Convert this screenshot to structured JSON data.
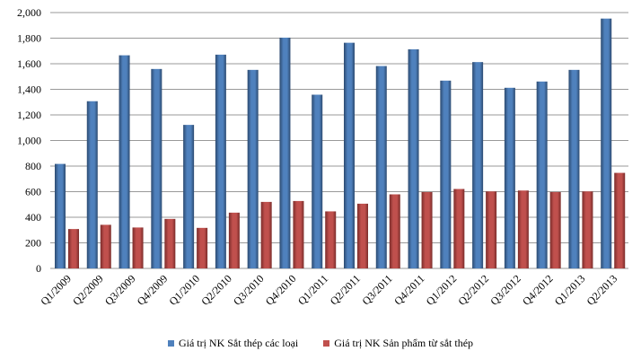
{
  "chart_data": {
    "type": "bar",
    "title": "",
    "xlabel": "",
    "ylabel": "",
    "ylim": [
      0,
      2000
    ],
    "yticks": [
      0,
      200,
      400,
      600,
      800,
      1000,
      1200,
      1400,
      1600,
      1800,
      2000
    ],
    "ytick_labels": [
      "0",
      "200",
      "400",
      "600",
      "800",
      "1,000",
      "1,200",
      "1,400",
      "1,600",
      "1,800",
      "2,000"
    ],
    "grid": true,
    "legend_position": "bottom",
    "categories": [
      "Q1/2009",
      "Q2/2009",
      "Q3/2009",
      "Q4/2009",
      "Q1/2010",
      "Q2/2010",
      "Q3/2010",
      "Q4/2010",
      "Q1/2011",
      "Q2/2011",
      "Q3/2011",
      "Q4/2011",
      "Q1/2012",
      "Q2/2012",
      "Q3/2012",
      "Q4/2012",
      "Q1/2013",
      "Q2/2013"
    ],
    "series": [
      {
        "name": "Giá trị NK Sắt thép các loại",
        "color": "#4F81BD",
        "values": [
          817,
          1307,
          1666,
          1559,
          1122,
          1671,
          1552,
          1804,
          1358,
          1764,
          1582,
          1713,
          1468,
          1613,
          1412,
          1461,
          1552,
          1953
        ]
      },
      {
        "name": "Giá trị NK Sản phẩm từ sắt thép",
        "color": "#C0504D",
        "values": [
          308,
          341,
          320,
          387,
          317,
          436,
          520,
          527,
          446,
          506,
          579,
          597,
          621,
          602,
          609,
          597,
          602,
          747
        ]
      }
    ]
  }
}
